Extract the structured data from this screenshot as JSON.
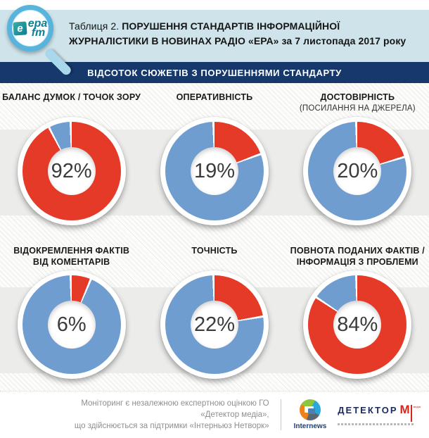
{
  "header": {
    "title_prefix": "Таблиця 2. ",
    "title_bold_line1": "ПОРУШЕННЯ СТАНДАРТІВ ІНФОРМАЦІЙНОЇ",
    "title_bold_line2": "ЖУРНАЛІСТИКИ В НОВИНАХ РАДІО «ЕРА» за  7 листопада  2017 року",
    "band_title": "ВІДСОТОК СЮЖЕТІВ З ПОРУШЕННЯМИ СТАНДАРТУ",
    "logo": {
      "tile": "е",
      "line1": "epa",
      "line2": "fm"
    }
  },
  "colors": {
    "red": "#e53a28",
    "blue": "#6f9dd0",
    "navy": "#17386b",
    "header_bg": "#cfe4ea",
    "gray_band": "#ececeb"
  },
  "charts": [
    {
      "t1": "БАЛАНС ДУМОК / ТОЧОК ЗОРУ",
      "t2": "",
      "sub": "",
      "value": 92,
      "label": "92%"
    },
    {
      "t1": "ОПЕРАТИВНІСТЬ",
      "t2": "",
      "sub": "",
      "value": 19,
      "label": "19%"
    },
    {
      "t1": "ДОСТОВІРНІСТЬ",
      "t2": "",
      "sub": "(ПОСИЛАННЯ НА ДЖЕРЕЛА)",
      "value": 20,
      "label": "20%"
    },
    {
      "t1": "ВІДОКРЕМЛЕННЯ ФАКТІВ",
      "t2": "ВІД КОМЕНТАРІВ",
      "sub": "",
      "value": 6,
      "label": "6%"
    },
    {
      "t1": "ТОЧНІСТЬ",
      "t2": "",
      "sub": "",
      "value": 22,
      "label": "22%"
    },
    {
      "t1": "ПОВНОТА ПОДАНИХ ФАКТІВ /",
      "t2": "ІНФОРМАЦІЯ З ПРОБЛЕМИ",
      "sub": "",
      "value": 84,
      "label": "84%"
    }
  ],
  "chart_data": [
    {
      "type": "pie",
      "title": "БАЛАНС ДУМОК / ТОЧОК ЗОРУ",
      "values": [
        92,
        8
      ],
      "segment_colors": [
        "#e53a28",
        "#6f9dd0"
      ],
      "center_label": "92%"
    },
    {
      "type": "pie",
      "title": "ОПЕРАТИВНІСТЬ",
      "values": [
        19,
        81
      ],
      "segment_colors": [
        "#e53a28",
        "#6f9dd0"
      ],
      "center_label": "19%"
    },
    {
      "type": "pie",
      "title": "ДОСТОВІРНІСТЬ (ПОСИЛАННЯ НА ДЖЕРЕЛА)",
      "values": [
        20,
        80
      ],
      "segment_colors": [
        "#e53a28",
        "#6f9dd0"
      ],
      "center_label": "20%"
    },
    {
      "type": "pie",
      "title": "ВІДОКРЕМЛЕННЯ ФАКТІВ ВІД КОМЕНТАРІВ",
      "values": [
        6,
        94
      ],
      "segment_colors": [
        "#e53a28",
        "#6f9dd0"
      ],
      "center_label": "6%"
    },
    {
      "type": "pie",
      "title": "ТОЧНІСТЬ",
      "values": [
        22,
        78
      ],
      "segment_colors": [
        "#e53a28",
        "#6f9dd0"
      ],
      "center_label": "22%"
    },
    {
      "type": "pie",
      "title": "ПОВНОТА ПОДАНИХ ФАКТІВ / ІНФОРМАЦІЯ З ПРОБЛЕМИ",
      "values": [
        84,
        16
      ],
      "segment_colors": [
        "#e53a28",
        "#6f9dd0"
      ],
      "center_label": "84%"
    }
  ],
  "footer": {
    "note_line1": "Моніторинг є незалежною експертною оцінкою ГО «Детектор медіа»,",
    "note_line2": "що здійснюється за підтримки «Інтерньюз Нетворк»",
    "internews_label": "Internews",
    "detector_word": "ДЕТЕКТОР",
    "detector_m": "М",
    "detector_media": "медіа"
  }
}
